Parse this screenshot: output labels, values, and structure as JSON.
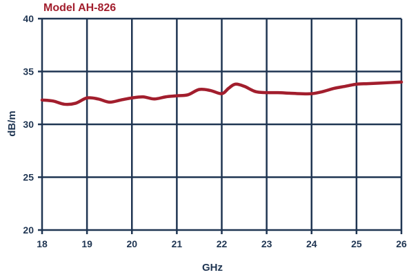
{
  "colors": {
    "title": "#a21e2d",
    "line": "#a21e2d",
    "grid": "#1f3552",
    "text": "#1f3552",
    "background": "#ffffff"
  },
  "chart_data": {
    "type": "line",
    "title": "Model AH-826",
    "xlabel": "GHz",
    "ylabel": "dB/m",
    "xlim": [
      18,
      26
    ],
    "ylim": [
      20,
      40
    ],
    "x_ticks": [
      "18",
      "19",
      "20",
      "21",
      "22",
      "23",
      "24",
      "25",
      "26"
    ],
    "y_ticks": [
      "20",
      "25",
      "30",
      "35",
      "40"
    ],
    "grid": true,
    "legend": "none",
    "series": [
      {
        "x": [
          18.0,
          18.25,
          18.5,
          18.75,
          19.0,
          19.25,
          19.5,
          19.75,
          20.0,
          20.25,
          20.5,
          20.75,
          21.0,
          21.25,
          21.5,
          21.75,
          22.0,
          22.15,
          22.3,
          22.5,
          22.75,
          23.0,
          23.25,
          23.5,
          23.75,
          24.0,
          24.25,
          24.5,
          24.75,
          25.0,
          25.25,
          25.5,
          25.75,
          26.0
        ],
        "y": [
          32.3,
          32.2,
          31.9,
          32.0,
          32.5,
          32.4,
          32.1,
          32.3,
          32.5,
          32.6,
          32.4,
          32.6,
          32.7,
          32.8,
          33.3,
          33.2,
          32.9,
          33.4,
          33.8,
          33.6,
          33.1,
          33.0,
          33.0,
          32.95,
          32.9,
          32.9,
          33.1,
          33.4,
          33.6,
          33.8,
          33.85,
          33.9,
          33.95,
          34.0
        ]
      }
    ]
  }
}
